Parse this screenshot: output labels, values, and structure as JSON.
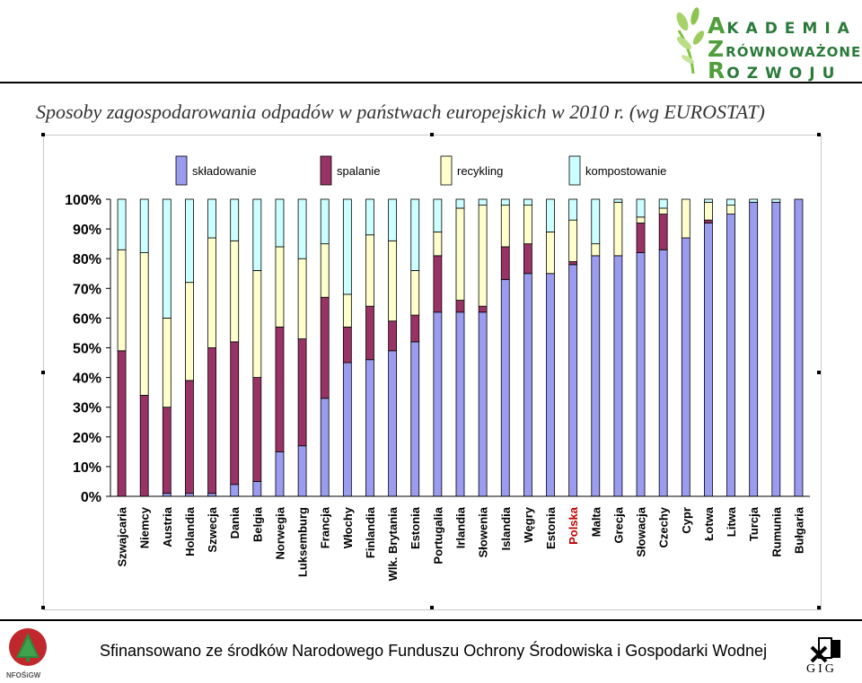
{
  "logo": {
    "line1": "AKADEMIA",
    "line2": "ZRÓWNOWAŻONEGO",
    "line3": "ROZWOJU"
  },
  "title": "Sposoby zagospodarowania odpadów w państwach europejskich w 2010 r. (wg EUROSTAT)",
  "footer": {
    "text": "Sfinansowano ze środków Narodowego Funduszu Ochrony Środowiska i Gospodarki Wodnej",
    "left_logo": "NFOŚiGW",
    "right_logo": "GIG"
  },
  "colors": {
    "skladowanie": "#9b9bf0",
    "spalanie": "#993366",
    "recykling": "#ffffcc",
    "kompostowanie": "#ccffff",
    "highlight_label": "#c00000"
  },
  "chart_data": {
    "type": "bar",
    "stacked": true,
    "orientation": "vertical",
    "ylim": [
      0,
      100
    ],
    "yticks": [
      "0%",
      "10%",
      "20%",
      "30%",
      "40%",
      "50%",
      "60%",
      "70%",
      "80%",
      "90%",
      "100%"
    ],
    "grid": false,
    "legend_position": "top",
    "highlight_category": "Polska",
    "categories": [
      "Szwajcaria",
      "Niemcy",
      "Austria",
      "Holandia",
      "Szwecja",
      "Dania",
      "Belgia",
      "Norwegia",
      "Luksemburg",
      "Francja",
      "Włochy",
      "Finlandia",
      "Wlk. Brytania",
      "Estonia",
      "Portugalia",
      "Irlandia",
      "Słowenia",
      "Islandia",
      "Węgry",
      "Estonia",
      "Polska",
      "Malta",
      "Grecja",
      "Słowacja",
      "Czechy",
      "Cypr",
      "Łotwa",
      "Litwa",
      "Turcja",
      "Rumunia",
      "Bułgaria"
    ],
    "series": [
      {
        "name": "składowanie",
        "color": "#9b9bf0",
        "values": [
          0,
          0,
          1,
          1,
          1,
          4,
          5,
          15,
          17,
          33,
          45,
          46,
          49,
          52,
          62,
          62,
          62,
          73,
          75,
          75,
          78,
          81,
          81,
          82,
          83,
          87,
          92,
          95,
          99,
          99,
          100
        ]
      },
      {
        "name": "spalanie",
        "color": "#993366",
        "values": [
          49,
          34,
          29,
          38,
          49,
          48,
          35,
          42,
          36,
          34,
          12,
          18,
          10,
          9,
          19,
          4,
          2,
          11,
          10,
          0,
          1,
          0,
          0,
          10,
          12,
          0,
          1,
          0,
          0,
          0,
          0
        ]
      },
      {
        "name": "recykling",
        "color": "#ffffcc",
        "values": [
          34,
          48,
          30,
          33,
          37,
          34,
          36,
          27,
          27,
          18,
          11,
          24,
          27,
          15,
          8,
          31,
          34,
          14,
          13,
          14,
          14,
          4,
          18,
          2,
          2,
          13,
          6,
          3,
          0,
          0,
          0
        ]
      },
      {
        "name": "kompostowanie",
        "color": "#ccffff",
        "values": [
          17,
          18,
          40,
          28,
          13,
          14,
          24,
          16,
          20,
          15,
          32,
          12,
          14,
          24,
          11,
          3,
          2,
          2,
          2,
          11,
          7,
          15,
          1,
          6,
          3,
          0,
          1,
          2,
          1,
          1,
          0
        ]
      }
    ]
  }
}
